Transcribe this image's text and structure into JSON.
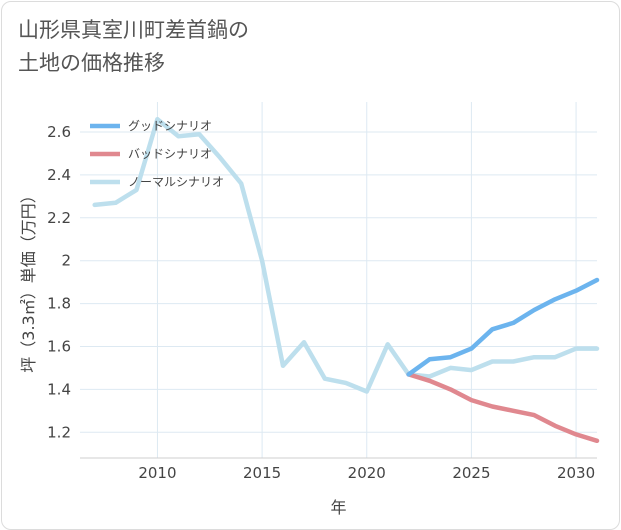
{
  "title": "山形県真室川町差首鍋の\n土地の価格推移",
  "chart_data": {
    "type": "line",
    "title": "山形県真室川町差首鍋の土地の価格推移",
    "xlabel": "年",
    "ylabel": "坪（3.3㎡）単価（万円）",
    "xlim": [
      2006.3,
      2031
    ],
    "ylim": [
      1.08,
      2.74
    ],
    "x_ticks": [
      2010,
      2015,
      2020,
      2025,
      2030
    ],
    "y_ticks": [
      1.2,
      1.4,
      1.6,
      1.8,
      2,
      2.2,
      2.4,
      2.6
    ],
    "grid": true,
    "legend_position": "top-left",
    "series": [
      {
        "name": "グッドシナリオ",
        "color": "#6cb4ee",
        "x": [
          2022,
          2023,
          2024,
          2025,
          2026,
          2027,
          2028,
          2029,
          2030,
          2031
        ],
        "y": [
          1.47,
          1.54,
          1.55,
          1.59,
          1.68,
          1.71,
          1.77,
          1.82,
          1.86,
          1.91
        ]
      },
      {
        "name": "バッドシナリオ",
        "color": "#e0888f",
        "x": [
          2022,
          2023,
          2024,
          2025,
          2026,
          2027,
          2028,
          2029,
          2030,
          2031
        ],
        "y": [
          1.47,
          1.44,
          1.4,
          1.35,
          1.32,
          1.3,
          1.28,
          1.23,
          1.19,
          1.16
        ]
      },
      {
        "name": "ノーマルシナリオ",
        "color": "#bddfed",
        "x": [
          2007,
          2008,
          2009,
          2010,
          2011,
          2012,
          2013,
          2014,
          2015,
          2016,
          2017,
          2018,
          2019,
          2020,
          2021,
          2022,
          2023,
          2024,
          2025,
          2026,
          2027,
          2028,
          2029,
          2030,
          2031
        ],
        "y": [
          2.26,
          2.27,
          2.33,
          2.66,
          2.58,
          2.59,
          2.48,
          2.36,
          2.0,
          1.51,
          1.62,
          1.45,
          1.43,
          1.39,
          1.61,
          1.47,
          1.46,
          1.5,
          1.49,
          1.53,
          1.53,
          1.55,
          1.55,
          1.59,
          1.59
        ]
      }
    ]
  }
}
